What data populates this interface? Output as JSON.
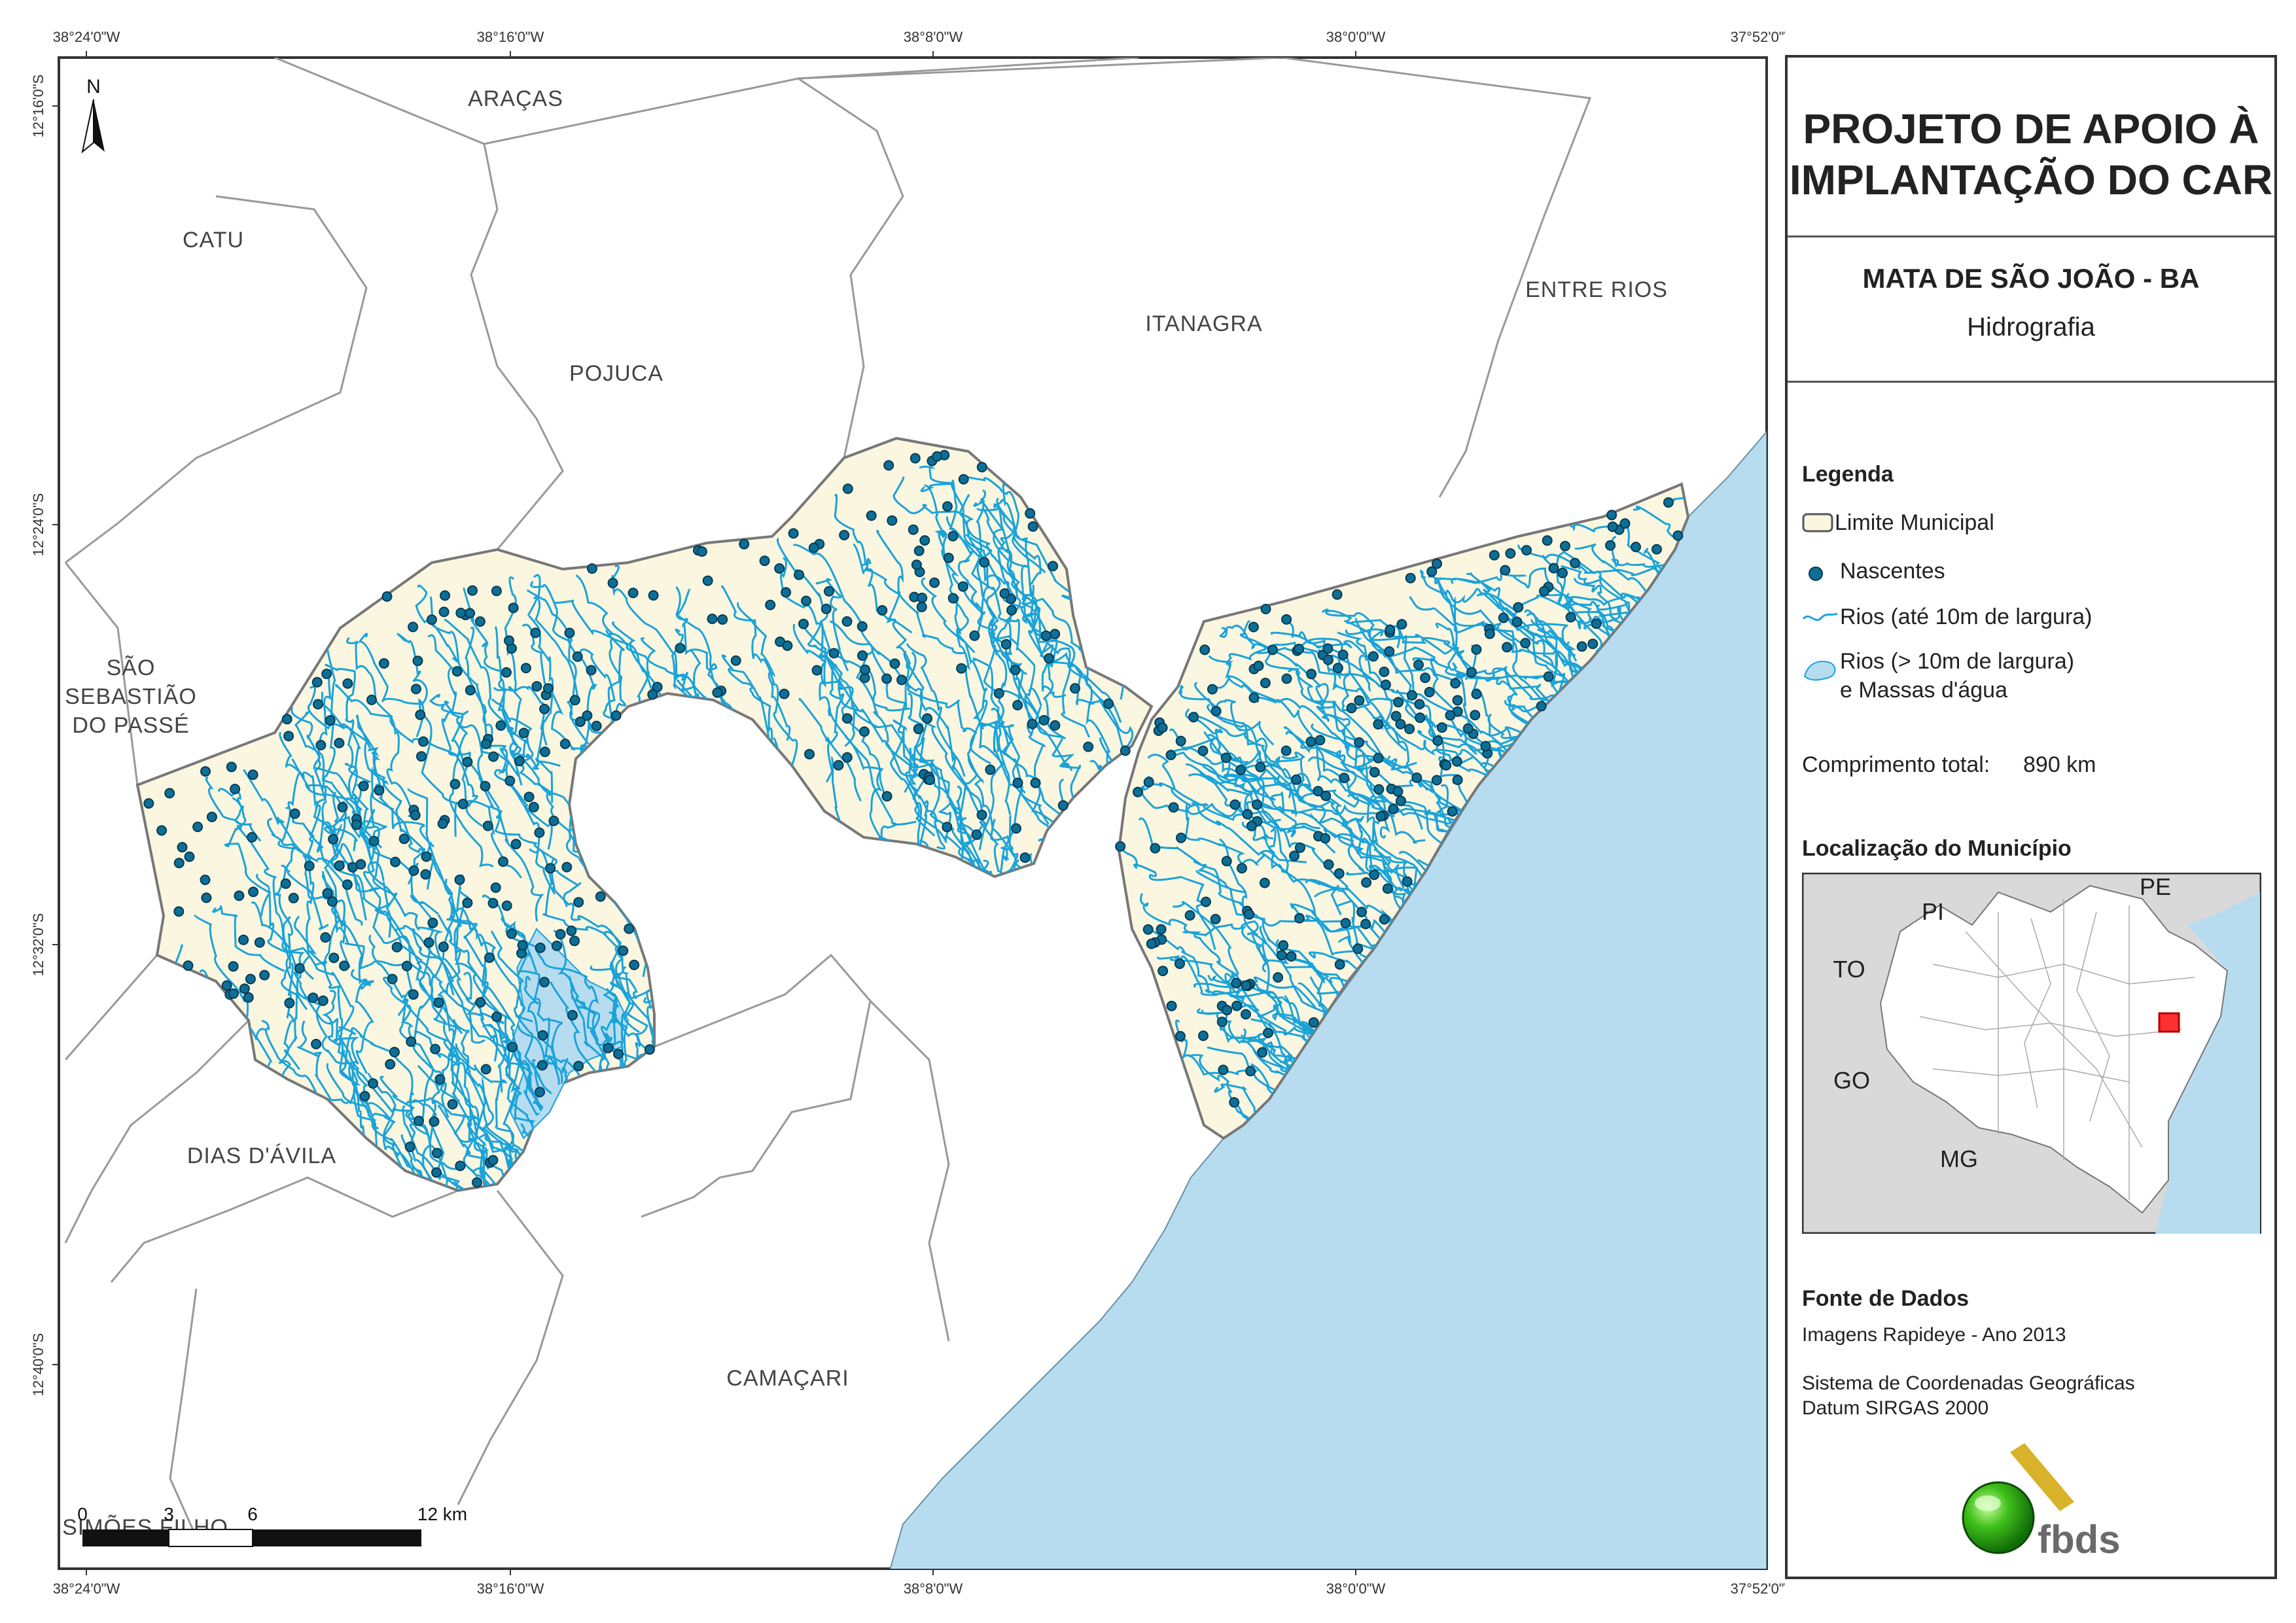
{
  "map": {
    "coords_top": [
      "38°24'0\"W",
      "38°16'0\"W",
      "38°8'0\"W",
      "38°0'0\"W",
      "37°52'0\"W"
    ],
    "coords_bottom": [
      "38°24'0\"W",
      "38°16'0\"W",
      "38°8'0\"W",
      "38°0'0\"W",
      "37°52'0\"W"
    ],
    "coords_left": [
      "12°16'0\"S",
      "12°24'0\"S",
      "12°32'0\"S",
      "12°40'0\"S"
    ],
    "north_label": "N",
    "municipalities": {
      "aracas": "ARAÇAS",
      "catu": "CATU",
      "pojuca": "POJUCA",
      "itanagra": "ITANAGRA",
      "entre_rios": "ENTRE RIOS",
      "sao_sebastiao_1": "SÃO",
      "sao_sebastiao_2": "SEBASTIÃO",
      "sao_sebastiao_3": "DO PASSÉ",
      "dias_davila": "DIAS D'ÁVILA",
      "camacari": "CAMAÇARI",
      "simoes_filho": "SIMÕES FILHO"
    },
    "scale": {
      "t0": "0",
      "t1": "3",
      "t2": "6",
      "t3": "12 km"
    },
    "colors": {
      "municipality_fill": "#fbf6e0",
      "sea": "#b7dcf0",
      "river": "#1aa3d9",
      "spring": "#0e6f96"
    }
  },
  "panel": {
    "title": [
      "PROJETO DE APOIO À",
      "IMPLANTAÇÃO DO CAR"
    ],
    "municipality": "MATA DE SÃO JOÃO - BA",
    "theme": "Hidrografia",
    "legend": {
      "heading": "Legenda",
      "limite": "Limite Municipal",
      "nascentes": "Nascentes",
      "rios_small": "Rios (até 10m de largura)",
      "rios_large_1": "Rios (> 10m de largura)",
      "rios_large_2": "e Massas d'água",
      "comprimento_label": "Comprimento total:",
      "comprimento_value": "890 km"
    },
    "localizacao": {
      "heading": "Localização do Município",
      "states": {
        "pi": "PI",
        "pe": "PE",
        "to": "TO",
        "go": "GO",
        "mg": "MG"
      }
    },
    "fonte": {
      "heading": "Fonte de Dados",
      "line1": "Imagens Rapideye - Ano 2013",
      "line2": "Sistema de Coordenadas Geográficas",
      "line3": "Datum SIRGAS 2000"
    },
    "logo_text": "fbds"
  }
}
